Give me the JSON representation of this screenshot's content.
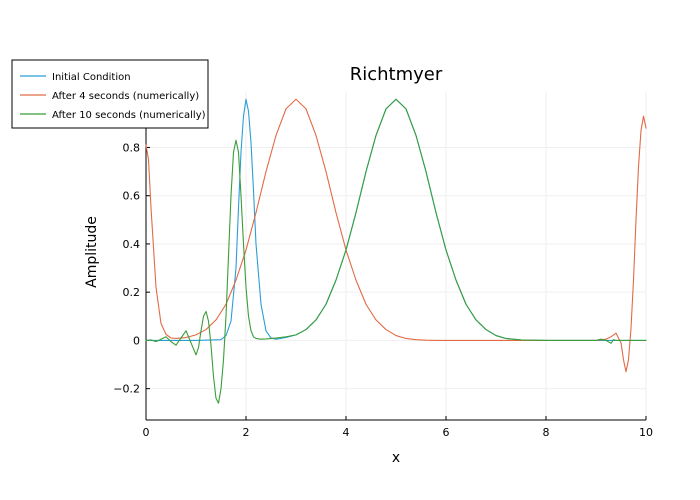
{
  "chart_data": {
    "type": "line",
    "title": "Richtmyer",
    "xlabel": "x",
    "ylabel": "Amplitude",
    "xlim": [
      0,
      10
    ],
    "ylim": [
      -0.33,
      1.03
    ],
    "x_ticks": [
      0,
      2,
      4,
      6,
      8,
      10
    ],
    "y_ticks": [
      -0.2,
      0,
      0.2,
      0.4,
      0.6,
      0.8
    ],
    "grid": true,
    "legend_position": "top-left",
    "series": [
      {
        "name": "Initial Condition",
        "color": "#2a9fd6",
        "x": [
          0,
          1.0,
          1.5,
          1.6,
          1.7,
          1.8,
          1.85,
          1.9,
          1.95,
          2.0,
          2.05,
          2.1,
          2.15,
          2.2,
          2.3,
          2.4,
          2.5,
          2.6,
          2.8,
          3.0,
          3.2,
          3.4,
          3.6,
          3.8,
          4.0,
          4.2,
          4.4,
          4.6,
          4.8,
          5.0,
          5.2,
          5.4,
          5.6,
          5.8,
          6.0,
          6.2,
          6.4,
          6.6,
          6.8,
          7.0,
          7.2,
          7.5,
          8.0,
          9.0,
          10.0
        ],
        "y": [
          0,
          0,
          0.003,
          0.02,
          0.08,
          0.3,
          0.55,
          0.78,
          0.93,
          1.0,
          0.95,
          0.82,
          0.62,
          0.4,
          0.15,
          0.04,
          0.01,
          0.005,
          0.012,
          0.023,
          0.045,
          0.085,
          0.15,
          0.25,
          0.375,
          0.53,
          0.7,
          0.85,
          0.96,
          1.0,
          0.96,
          0.85,
          0.7,
          0.53,
          0.375,
          0.25,
          0.15,
          0.085,
          0.045,
          0.02,
          0.008,
          0.002,
          0,
          0,
          0
        ]
      },
      {
        "name": "After 4 seconds (numerically)",
        "color": "#e26a45",
        "x": [
          0,
          0.05,
          0.1,
          0.2,
          0.3,
          0.4,
          0.5,
          0.6,
          0.8,
          1.0,
          1.2,
          1.4,
          1.6,
          1.8,
          2.0,
          2.2,
          2.4,
          2.6,
          2.8,
          3.0,
          3.2,
          3.4,
          3.6,
          3.8,
          4.0,
          4.2,
          4.4,
          4.6,
          4.8,
          5.0,
          5.2,
          5.4,
          5.6,
          5.8,
          6.0,
          6.5,
          7.0,
          8.0,
          9.0,
          9.2,
          9.3,
          9.4,
          9.5,
          9.55,
          9.6,
          9.65,
          9.7,
          9.75,
          9.8,
          9.85,
          9.9,
          9.95,
          10.0
        ],
        "y": [
          0.81,
          0.75,
          0.55,
          0.22,
          0.07,
          0.025,
          0.01,
          0.008,
          0.012,
          0.023,
          0.045,
          0.085,
          0.15,
          0.25,
          0.375,
          0.53,
          0.7,
          0.85,
          0.96,
          1.0,
          0.96,
          0.85,
          0.7,
          0.53,
          0.375,
          0.25,
          0.15,
          0.085,
          0.045,
          0.02,
          0.008,
          0.003,
          0.001,
          0.0,
          0.0,
          0.0,
          0.0,
          0.0,
          0.0,
          0.005,
          0.015,
          0.03,
          -0.01,
          -0.08,
          -0.13,
          -0.08,
          0.05,
          0.25,
          0.5,
          0.72,
          0.87,
          0.93,
          0.88
        ]
      },
      {
        "name": "After 10 seconds (numerically)",
        "color": "#3a9e3a",
        "x": [
          0,
          0.1,
          0.2,
          0.3,
          0.4,
          0.5,
          0.6,
          0.7,
          0.8,
          0.9,
          1.0,
          1.05,
          1.1,
          1.15,
          1.2,
          1.25,
          1.3,
          1.35,
          1.4,
          1.45,
          1.5,
          1.55,
          1.6,
          1.65,
          1.7,
          1.75,
          1.8,
          1.85,
          1.9,
          1.95,
          2.0,
          2.05,
          2.1,
          2.15,
          2.2,
          2.3,
          2.4,
          2.5,
          2.6,
          2.8,
          3.0,
          3.2,
          3.4,
          3.6,
          3.8,
          4.0,
          4.2,
          4.4,
          4.6,
          4.8,
          5.0,
          5.2,
          5.4,
          5.6,
          5.8,
          6.0,
          6.2,
          6.4,
          6.6,
          6.8,
          7.0,
          7.2,
          7.5,
          8.0,
          9.0,
          9.1,
          9.2,
          9.3,
          9.35,
          9.4,
          9.5,
          10.0
        ],
        "y": [
          0,
          0.002,
          -0.005,
          0.005,
          0.015,
          -0.005,
          -0.02,
          0.01,
          0.04,
          -0.01,
          -0.06,
          -0.03,
          0.04,
          0.1,
          0.12,
          0.08,
          -0.02,
          -0.15,
          -0.24,
          -0.26,
          -0.2,
          -0.08,
          0.1,
          0.35,
          0.6,
          0.78,
          0.83,
          0.78,
          0.6,
          0.4,
          0.22,
          0.1,
          0.04,
          0.015,
          0.008,
          0.005,
          0.006,
          0.008,
          0.01,
          0.015,
          0.023,
          0.045,
          0.085,
          0.15,
          0.25,
          0.375,
          0.53,
          0.7,
          0.85,
          0.96,
          1.0,
          0.96,
          0.85,
          0.7,
          0.53,
          0.375,
          0.25,
          0.15,
          0.085,
          0.045,
          0.02,
          0.008,
          0.002,
          0,
          0,
          0.005,
          0,
          -0.012,
          0.003,
          0,
          0,
          0
        ]
      }
    ]
  }
}
